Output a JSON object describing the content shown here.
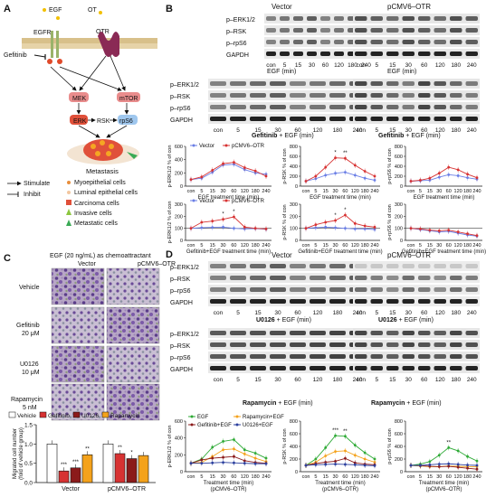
{
  "panels": {
    "A": "A",
    "B": "B",
    "C": "C",
    "D": "D"
  },
  "colors": {
    "vector": "#6b7fe6",
    "otr": "#d73232",
    "green": "#2eaa36",
    "orange": "#f4a21b",
    "darkred": "#8b1a1a",
    "navy": "#2b3f9e"
  },
  "panelA": {
    "egf": "EGF",
    "ot": "OT",
    "egfr": "EGFR",
    "otr": "OTR",
    "gefitinib": "Gefitinib",
    "mek": "MEK",
    "mtor": "mTOR",
    "erk": "ERK",
    "rsk": "RSK",
    "rps6": "rpS6",
    "metastasis": "Metastasis",
    "legend_arrows": [
      "Stimulate",
      "Inhibit"
    ],
    "legend_cells": [
      "Myoepithelial cells",
      "Luminal epithelial cells",
      "Carcinoma cells",
      "Invasive cells",
      "Metastatic cells"
    ]
  },
  "panelB": {
    "vector": "Vector",
    "otr": "pCMV6–OTR",
    "rows": [
      "p–ERK1/2",
      "p–RSK",
      "p–rpS6",
      "GAPDH"
    ],
    "lanes": [
      "con",
      "5",
      "15",
      "30",
      "60",
      "120",
      "180",
      "240"
    ],
    "egf_min": "EGF (min)",
    "gef_egf_pre": "Gefitinib",
    "gef_egf_post": " + EGF (min)",
    "legend": [
      "Vector",
      "pCMV6–OTR"
    ],
    "xlabel_egf": "EGF treatment time (min)",
    "xlabel_gef": "Gefitinib+EGF treatment time (min)",
    "ylabels": [
      "p-ERK1/2 % of con",
      "p-RSK % of con",
      "p-rpS6 % of con"
    ],
    "sig": [
      "*",
      "**",
      "*",
      "*",
      "*",
      "*"
    ]
  },
  "panelC": {
    "title": "EGF (20 ng/mL) as chemoattractant",
    "cols": [
      "Vector",
      "pCMV6–OTR"
    ],
    "rows": [
      "Vehicle",
      "Gefitinib",
      "20 μM",
      "U0126",
      "10 μM",
      "Rapamycin",
      "5 nM"
    ],
    "legend": [
      "Vehicle",
      "Gefitinib",
      "U0126",
      "Rapamycin"
    ],
    "ylabel": [
      "Migrated cell number",
      "(fold of vehicle group)"
    ],
    "xlabels": [
      "Vector",
      "pCMV6–OTR"
    ],
    "sig": [
      "***",
      "***",
      "**",
      "**",
      "*"
    ]
  },
  "panelD": {
    "vector": "Vector",
    "otr": "pCMV6–OTR",
    "rows": [
      "p–ERK1/2",
      "p–RSK",
      "p–rpS6",
      "GAPDH"
    ],
    "lanes": [
      "con",
      "5",
      "15",
      "30",
      "60",
      "120",
      "180",
      "240"
    ],
    "u0126": "U0126",
    "rapamycin": "Rapamycin",
    "post": " + EGF (min)",
    "legend": [
      "EGF",
      "Rapamycin+EGF",
      "Gefitinib+EGF",
      "U0126+EGF"
    ],
    "xlabel": [
      "Treatment time (min)",
      "(pCMV6–OTR)"
    ],
    "ylabels": [
      "p-ERK1/2 % of con",
      "p-RSK % of con",
      "p-rpS6 % of con"
    ],
    "sig": [
      "***",
      "**",
      "**"
    ]
  },
  "chart_data": [
    {
      "type": "line",
      "panel": "B-1",
      "x": [
        "con",
        "5",
        "15",
        "30",
        "60",
        "120",
        "180",
        "240"
      ],
      "ylabel": "p-ERK1/2 % of con",
      "xlabel": "EGF treatment time (min)",
      "ylim": [
        0,
        600
      ],
      "yticks": [
        0,
        200,
        400,
        600
      ],
      "series": [
        {
          "name": "Vector",
          "values": [
            100,
            120,
            210,
            320,
            330,
            250,
            200,
            180
          ]
        },
        {
          "name": "pCMV6–OTR",
          "values": [
            100,
            140,
            240,
            340,
            360,
            280,
            230,
            150
          ]
        }
      ]
    },
    {
      "type": "line",
      "panel": "B-2",
      "x": [
        "con",
        "5",
        "15",
        "30",
        "60",
        "120",
        "180",
        "240"
      ],
      "ylabel": "p-RSK % of con",
      "xlabel": "EGF treatment time (min)",
      "ylim": [
        0,
        800
      ],
      "yticks": [
        0,
        200,
        400,
        600,
        800
      ],
      "series": [
        {
          "name": "Vector",
          "values": [
            100,
            150,
            220,
            260,
            280,
            220,
            160,
            120
          ]
        },
        {
          "name": "pCMV6–OTR",
          "values": [
            100,
            200,
            380,
            570,
            560,
            420,
            300,
            200
          ]
        }
      ]
    },
    {
      "type": "line",
      "panel": "B-3",
      "x": [
        "con",
        "5",
        "15",
        "30",
        "60",
        "120",
        "180",
        "240"
      ],
      "ylabel": "p-rpS6 % of con",
      "xlabel": "EGF treatment time (min)",
      "ylim": [
        0,
        800
      ],
      "yticks": [
        0,
        200,
        400,
        600,
        800
      ],
      "series": [
        {
          "name": "Vector",
          "values": [
            100,
            110,
            120,
            180,
            230,
            210,
            170,
            140
          ]
        },
        {
          "name": "pCMV6–OTR",
          "values": [
            100,
            120,
            160,
            260,
            380,
            330,
            240,
            170
          ]
        }
      ]
    },
    {
      "type": "line",
      "panel": "B-4",
      "x": [
        "con",
        "5",
        "15",
        "30",
        "60",
        "120",
        "180",
        "240"
      ],
      "ylabel": "p-ERK1/2 % of con",
      "xlabel": "Gefitinib+EGF treatment time (min)",
      "ylim": [
        0,
        300
      ],
      "yticks": [
        0,
        100,
        200,
        300
      ],
      "series": [
        {
          "name": "Vector",
          "values": [
            100,
            105,
            108,
            110,
            100,
            95,
            98,
            92
          ]
        },
        {
          "name": "pCMV6–OTR",
          "values": [
            100,
            150,
            160,
            175,
            195,
            110,
            100,
            95
          ]
        }
      ]
    },
    {
      "type": "line",
      "panel": "B-5",
      "x": [
        "con",
        "5",
        "15",
        "30",
        "60",
        "120",
        "180",
        "240"
      ],
      "ylabel": "p-RSK % of con",
      "xlabel": "Gefitinib+EGF treatment time (min)",
      "ylim": [
        0,
        300
      ],
      "yticks": [
        0,
        100,
        200,
        300
      ],
      "series": [
        {
          "name": "Vector",
          "values": [
            100,
            105,
            110,
            105,
            100,
            95,
            95,
            90
          ]
        },
        {
          "name": "pCMV6–OTR",
          "values": [
            100,
            130,
            150,
            165,
            210,
            140,
            120,
            110
          ]
        }
      ]
    },
    {
      "type": "line",
      "panel": "B-6",
      "x": [
        "con",
        "5",
        "15",
        "30",
        "60",
        "120",
        "180",
        "240"
      ],
      "ylabel": "p-rpS6 % of con",
      "xlabel": "Gefitinib+EGF treatment time (min)",
      "ylim": [
        0,
        300
      ],
      "yticks": [
        0,
        100,
        200,
        300
      ],
      "series": [
        {
          "name": "Vector",
          "values": [
            100,
            90,
            80,
            70,
            75,
            60,
            45,
            35
          ]
        },
        {
          "name": "pCMV6–OTR",
          "values": [
            100,
            95,
            85,
            80,
            85,
            70,
            55,
            40
          ]
        }
      ]
    },
    {
      "type": "bar",
      "panel": "C",
      "categories": [
        "Vector",
        "pCMV6–OTR"
      ],
      "ylabel": "Migrated cell number (fold of vehicle group)",
      "ylim": [
        0,
        1.5
      ],
      "yticks": [
        0,
        0.5,
        1.0,
        1.5
      ],
      "series": [
        {
          "name": "Vehicle",
          "values": [
            1.0,
            1.0
          ]
        },
        {
          "name": "Gefitinib",
          "values": [
            0.3,
            0.75
          ]
        },
        {
          "name": "U0126",
          "values": [
            0.38,
            0.62
          ]
        },
        {
          "name": "Rapamycin",
          "values": [
            0.72,
            0.7
          ]
        }
      ]
    },
    {
      "type": "line",
      "panel": "D-1",
      "x": [
        "con",
        "5",
        "15",
        "30",
        "60",
        "120",
        "180",
        "240"
      ],
      "ylabel": "p-ERK1/2 % of con",
      "xlabel": "Treatment time (min) (pCMV6–OTR)",
      "ylim": [
        0,
        600
      ],
      "yticks": [
        0,
        200,
        400,
        600
      ],
      "series": [
        {
          "name": "EGF",
          "values": [
            100,
            150,
            290,
            360,
            380,
            260,
            220,
            160
          ]
        },
        {
          "name": "Rapamycin+EGF",
          "values": [
            100,
            110,
            180,
            260,
            270,
            210,
            160,
            120
          ]
        },
        {
          "name": "Gefitinib+EGF",
          "values": [
            100,
            140,
            160,
            170,
            180,
            130,
            110,
            100
          ]
        },
        {
          "name": "U0126+EGF",
          "values": [
            100,
            100,
            105,
            110,
            105,
            100,
            95,
            95
          ]
        }
      ]
    },
    {
      "type": "line",
      "panel": "D-2",
      "x": [
        "con",
        "5",
        "15",
        "30",
        "60",
        "120",
        "180",
        "240"
      ],
      "ylabel": "p-RSK % of con",
      "xlabel": "Treatment time (min) (pCMV6–OTR)",
      "ylim": [
        0,
        800
      ],
      "yticks": [
        0,
        200,
        400,
        600,
        800
      ],
      "series": [
        {
          "name": "EGF",
          "values": [
            100,
            200,
            380,
            570,
            560,
            420,
            300,
            200
          ]
        },
        {
          "name": "Rapamycin+EGF",
          "values": [
            100,
            150,
            250,
            320,
            330,
            260,
            200,
            150
          ]
        },
        {
          "name": "Gefitinib+EGF",
          "values": [
            100,
            130,
            150,
            165,
            210,
            140,
            120,
            110
          ]
        },
        {
          "name": "U0126+EGF",
          "values": [
            100,
            110,
            115,
            120,
            115,
            110,
            100,
            95
          ]
        }
      ]
    },
    {
      "type": "line",
      "panel": "D-3",
      "x": [
        "con",
        "5",
        "15",
        "30",
        "60",
        "120",
        "180",
        "240"
      ],
      "ylabel": "p-rpS6 % of con",
      "xlabel": "Treatment time (min) (pCMV6–OTR)",
      "ylim": [
        0,
        800
      ],
      "yticks": [
        0,
        200,
        400,
        600,
        800
      ],
      "series": [
        {
          "name": "EGF",
          "values": [
            100,
            120,
            160,
            260,
            380,
            330,
            240,
            170
          ]
        },
        {
          "name": "Rapamycin+EGF",
          "values": [
            100,
            90,
            80,
            80,
            90,
            85,
            80,
            80
          ]
        },
        {
          "name": "Gefitinib+EGF",
          "values": [
            100,
            95,
            85,
            80,
            85,
            70,
            55,
            40
          ]
        },
        {
          "name": "U0126+EGF",
          "values": [
            100,
            100,
            110,
            120,
            125,
            115,
            105,
            100
          ]
        }
      ]
    }
  ]
}
